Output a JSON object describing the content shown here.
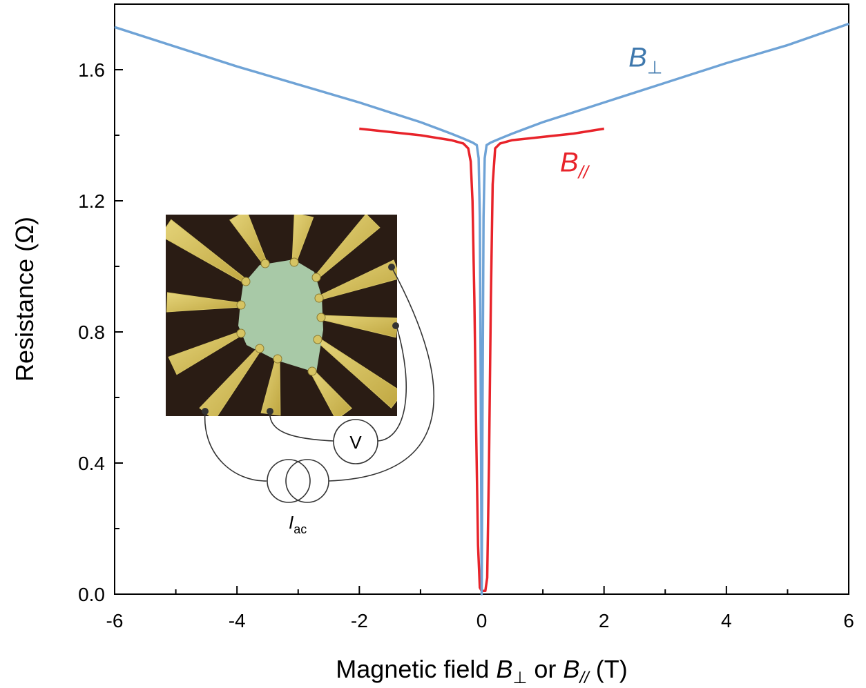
{
  "chart_data": {
    "type": "line",
    "xlabel": {
      "prefix": "Magnetic field ",
      "sym1": "B",
      "sub1": "⊥",
      "mid": " or ",
      "sym2": "B",
      "sub2": "//",
      "suffix": " (T)"
    },
    "ylabel": "Resistance (Ω)",
    "xlim": [
      -6,
      6
    ],
    "ylim": [
      0,
      1.8
    ],
    "xticks": [
      -6,
      -4,
      -2,
      0,
      2,
      4,
      6
    ],
    "xtick_labels": [
      "-6",
      "-4",
      "-2",
      "0",
      "2",
      "4",
      "6"
    ],
    "yticks": [
      0.0,
      0.4,
      0.8,
      1.2,
      1.6
    ],
    "ytick_labels": [
      "0.0",
      "0.4",
      "0.8",
      "1.2",
      "1.6"
    ],
    "grid": false,
    "series": [
      {
        "color": "#6fa3d6",
        "label": {
          "sym": "B",
          "sub": "⊥",
          "color": "#3f78ad",
          "x": 2.4,
          "y": 1.61
        },
        "x": [
          -6,
          -5,
          -4,
          -3,
          -2,
          -1.5,
          -1,
          -0.5,
          -0.3,
          -0.15,
          -0.08,
          -0.05,
          -0.03,
          -0.015,
          0,
          0.015,
          0.03,
          0.05,
          0.08,
          0.15,
          0.3,
          0.5,
          1,
          1.5,
          2,
          3,
          4,
          5,
          6
        ],
        "y": [
          1.73,
          1.67,
          1.61,
          1.555,
          1.5,
          1.47,
          1.44,
          1.405,
          1.39,
          1.378,
          1.37,
          1.33,
          1.15,
          0.6,
          0.0,
          0.6,
          1.15,
          1.33,
          1.37,
          1.378,
          1.39,
          1.405,
          1.44,
          1.47,
          1.5,
          1.56,
          1.62,
          1.675,
          1.74
        ]
      },
      {
        "color": "#e8232a",
        "label": {
          "sym": "B",
          "sub": "//",
          "color": "#e8232a",
          "x": 1.28,
          "y": 1.29
        },
        "x": [
          -2,
          -1.5,
          -1,
          -0.5,
          -0.3,
          -0.22,
          -0.18,
          -0.15,
          -0.12,
          -0.09,
          -0.06,
          -0.03,
          0.0,
          0.03,
          0.06,
          0.09,
          0.12,
          0.15,
          0.18,
          0.22,
          0.3,
          0.5,
          1,
          1.5,
          2
        ],
        "y": [
          1.42,
          1.41,
          1.4,
          1.385,
          1.375,
          1.36,
          1.32,
          1.2,
          0.9,
          0.5,
          0.15,
          0.02,
          0.01,
          0.01,
          0.01,
          0.05,
          0.4,
          0.9,
          1.25,
          1.36,
          1.375,
          1.385,
          1.395,
          1.405,
          1.42
        ]
      }
    ]
  },
  "inset": {
    "voltmeter_label": "V",
    "current_source_label": {
      "sym": "I",
      "sub": "ac"
    },
    "photo": {
      "background": "#2a1c14",
      "flake_color": "#a8c9a7",
      "lead_color": "#d6c463"
    }
  }
}
